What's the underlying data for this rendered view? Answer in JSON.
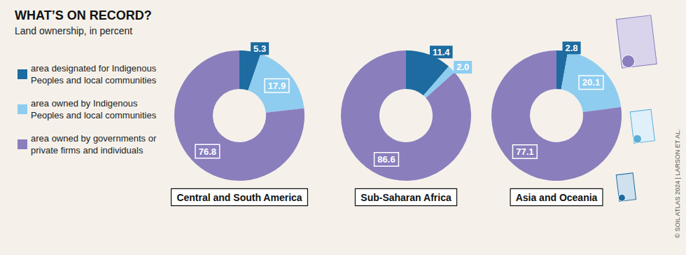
{
  "chart_data": {
    "type": "pie",
    "title": "WHAT’S ON RECORD?",
    "subtitle": "Land ownership, in percent",
    "source": "© SOIL ATLAS 2024 | LARSON ET AL.",
    "categories": [
      "area designated for Indigenous Peoples and local communities",
      "area owned by Indigenous Peoples and local communities",
      "area owned by governments or private firms and individuals"
    ],
    "colors": [
      "#1d6ba0",
      "#8ecdf0",
      "#8a7ebd"
    ],
    "data_labels": true,
    "legend": "left",
    "pies": [
      {
        "name": "Central and South America",
        "values": [
          5.3,
          17.9,
          76.8
        ],
        "value_labels": [
          "5.3",
          "17.9",
          "76.8"
        ]
      },
      {
        "name": "Sub-Saharan Africa",
        "values": [
          11.4,
          2.0,
          86.6
        ],
        "value_labels": [
          "11.4",
          "2.0",
          "86.6"
        ]
      },
      {
        "name": "Asia and Oceania",
        "values": [
          2.8,
          20.1,
          77.1
        ],
        "value_labels": [
          "2.8",
          "20.1",
          "77.1"
        ]
      }
    ]
  }
}
